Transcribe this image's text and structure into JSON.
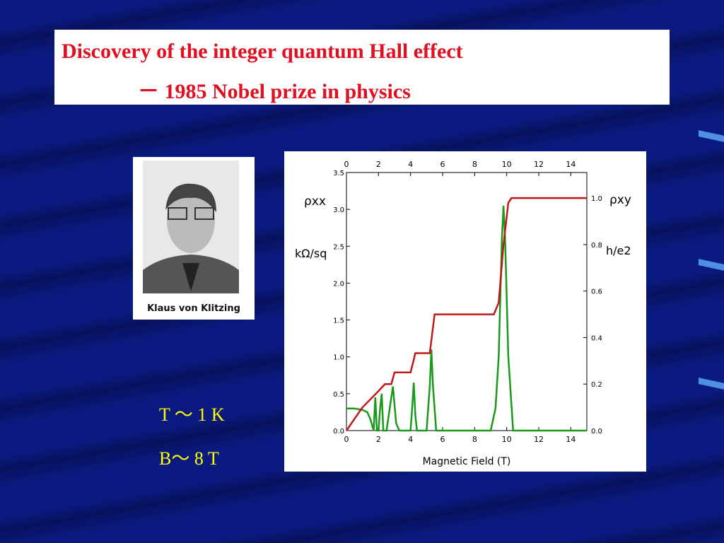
{
  "title_line1": "Discovery of the integer quantum Hall effect",
  "title_line2": "－ 1985 Nobel prize in physics",
  "photo_caption": "Klaus von Klitzing",
  "notes": [
    "T ～ 1 K",
    "B～ 8 T"
  ],
  "chart_data": {
    "type": "line",
    "xlabel": "Magnetic Field (T)",
    "ylabel": "ρxx",
    "ylabel_unit": "kΩ/sq",
    "y2label": "ρxy",
    "y2label_unit": "h/e2",
    "xlim": [
      0,
      15
    ],
    "xticks": [
      0,
      2,
      4,
      6,
      8,
      10,
      12,
      14
    ],
    "ylim": [
      0,
      3.5
    ],
    "yticks": [
      {
        "value": 0,
        "label": "0.0"
      },
      {
        "value": 0.5,
        "label": "0.5"
      },
      {
        "value": 1,
        "label": "1.0"
      },
      {
        "value": 1.5,
        "label": "1.5"
      },
      {
        "value": 2,
        "label": "2.0"
      },
      {
        "value": 2.5,
        "label": "2.5"
      },
      {
        "value": 3,
        "label": "3.0"
      },
      {
        "value": 3.5,
        "label": "3.5"
      }
    ],
    "y2lim": [
      0,
      1.11
    ],
    "y2ticks": [
      {
        "value": 0,
        "label": "0.0"
      },
      0.2,
      0.4,
      0.6,
      0.8,
      {
        "value": 1,
        "label": "1.0"
      }
    ],
    "series": [
      {
        "name": "ρxx",
        "color": "#1a9a1a",
        "x": [
          0,
          0.5,
          1,
          1.3,
          1.5,
          1.7,
          1.8,
          1.9,
          2.0,
          2.1,
          2.2,
          2.3,
          2.5,
          2.7,
          2.9,
          3.1,
          3.3,
          4.0,
          4.1,
          4.2,
          4.3,
          4.4,
          5.0,
          5.2,
          5.3,
          5.4,
          5.6,
          9.0,
          9.3,
          9.5,
          9.7,
          9.8,
          9.9,
          10.1,
          10.4,
          15
        ],
        "values": [
          0.3,
          0.3,
          0.28,
          0.25,
          0.15,
          0.0,
          0.45,
          0.0,
          0.0,
          0.3,
          0.5,
          0.0,
          0.0,
          0.3,
          0.6,
          0.1,
          0.0,
          0.0,
          0.3,
          0.65,
          0.2,
          0.0,
          0.0,
          0.6,
          1.1,
          0.6,
          0.0,
          0.0,
          0.3,
          1.0,
          2.6,
          3.05,
          2.6,
          1.0,
          0.0,
          0.0
        ]
      },
      {
        "name": "ρxy",
        "color": "#c01818",
        "axis": "y2",
        "x": [
          0,
          1,
          2,
          2.4,
          2.8,
          3.0,
          4.0,
          4.3,
          5.2,
          5.5,
          9.2,
          9.5,
          9.8,
          10.1,
          10.3,
          15
        ],
        "values": [
          0,
          0.1,
          0.17,
          0.2,
          0.2,
          0.25,
          0.25,
          0.333,
          0.333,
          0.5,
          0.5,
          0.55,
          0.8,
          0.98,
          1.0,
          1.0
        ]
      }
    ]
  }
}
